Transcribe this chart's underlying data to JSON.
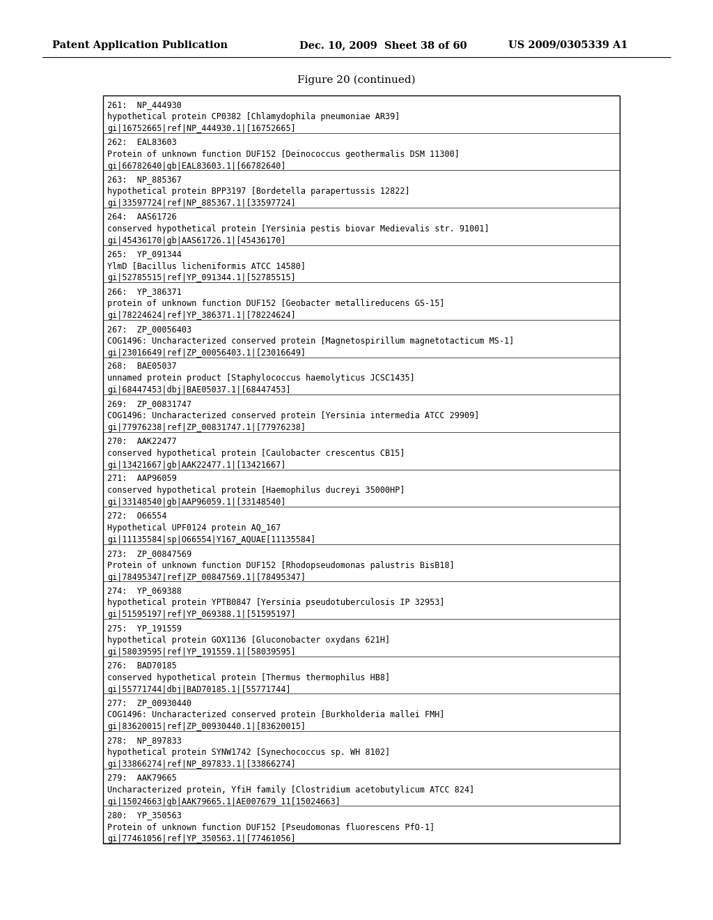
{
  "header_left": "Patent Application Publication",
  "header_mid": "Dec. 10, 2009  Sheet 38 of 60",
  "header_right": "US 2009/0305339 A1",
  "figure_title": "Figure 20 (continued)",
  "entries": [
    {
      "num": "261:  NP_444930",
      "line2": "hypothetical protein CP0382 [Chlamydophila pneumoniae AR39]",
      "line3": "gi|16752665|ref|NP_444930.1|[16752665]"
    },
    {
      "num": "262:  EAL83603",
      "line2": "Protein of unknown function DUF152 [Deinococcus geothermalis DSM 11300]",
      "line3": "gi|66782640|gb|EAL83603.1|[66782640]"
    },
    {
      "num": "263:  NP_885367",
      "line2": "hypothetical protein BPP3197 [Bordetella parapertussis 12822]",
      "line3": "gi|33597724|ref|NP_885367.1|[33597724]"
    },
    {
      "num": "264:  AAS61726",
      "line2": "conserved hypothetical protein [Yersinia pestis biovar Medievalis str. 91001]",
      "line3": "gi|45436170|gb|AAS61726.1|[45436170]"
    },
    {
      "num": "265:  YP_091344",
      "line2": "YlmD [Bacillus licheniformis ATCC 14580]",
      "line3": "gi|52785515|ref|YP_091344.1|[52785515]"
    },
    {
      "num": "266:  YP_386371",
      "line2": "protein of unknown function DUF152 [Geobacter metallireducens GS-15]",
      "line3": "gi|78224624|ref|YP_386371.1|[78224624]"
    },
    {
      "num": "267:  ZP_00056403",
      "line2": "COG1496: Uncharacterized conserved protein [Magnetospirillum magnetotacticum MS-1]",
      "line3": "gi|23016649|ref|ZP_00056403.1|[23016649]"
    },
    {
      "num": "268:  BAE05037",
      "line2": "unnamed protein product [Staphylococcus haemolyticus JCSC1435]",
      "line3": "gi|68447453|dbj|BAE05037.1|[68447453]"
    },
    {
      "num": "269:  ZP_00831747",
      "line2": "COG1496: Uncharacterized conserved protein [Yersinia intermedia ATCC 29909]",
      "line3": "gi|77976238|ref|ZP_00831747.1|[77976238]"
    },
    {
      "num": "270:  AAK22477",
      "line2": "conserved hypothetical protein [Caulobacter crescentus CB15]",
      "line3": "gi|13421667|gb|AAK22477.1|[13421667]"
    },
    {
      "num": "271:  AAP96059",
      "line2": "conserved hypothetical protein [Haemophilus ducreyi 35000HP]",
      "line3": "gi|33148540|gb|AAP96059.1|[33148540]"
    },
    {
      "num": "272:  O66554",
      "line2": "Hypothetical UPF0124 protein AQ_167",
      "line3": "gi|11135584|sp|O66554|Y167_AQUAE[11135584]"
    },
    {
      "num": "273:  ZP_00847569",
      "line2": "Protein of unknown function DUF152 [Rhodopseudomonas palustris BisB18]",
      "line3": "gi|78495347|ref|ZP_00847569.1|[78495347]"
    },
    {
      "num": "274:  YP_069388",
      "line2": "hypothetical protein YPTB0847 [Yersinia pseudotuberculosis IP 32953]",
      "line3": "gi|51595197|ref|YP_069388.1|[51595197]"
    },
    {
      "num": "275:  YP_191559",
      "line2": "hypothetical protein GOX1136 [Gluconobacter oxydans 621H]",
      "line3": "gi|58039595|ref|YP_191559.1|[58039595]"
    },
    {
      "num": "276:  BAD70185",
      "line2": "conserved hypothetical protein [Thermus thermophilus HB8]",
      "line3": "gi|55771744|dbj|BAD70185.1|[55771744]"
    },
    {
      "num": "277:  ZP_00930440",
      "line2": "COG1496: Uncharacterized conserved protein [Burkholderia mallei FMH]",
      "line3": "gi|83620015|ref|ZP_00930440.1|[83620015]"
    },
    {
      "num": "278:  NP_897833",
      "line2": "hypothetical protein SYNW1742 [Synechococcus sp. WH 8102]",
      "line3": "gi|33866274|ref|NP_897833.1|[33866274]"
    },
    {
      "num": "279:  AAK79665",
      "line2": "Uncharacterized protein, YfiH family [Clostridium acetobutylicum ATCC 824]",
      "line3": "gi|15024663|gb|AAK79665.1|AE007679_11[15024663]"
    },
    {
      "num": "280:  YP_350563",
      "line2": "Protein of unknown function DUF152 [Pseudomonas fluorescens PfO-1]",
      "line3": "gi|77461056|ref|YP_350563.1|[77461056]"
    }
  ],
  "bg_color": "#ffffff",
  "text_color": "#000000",
  "border_color": "#000000",
  "header_font_size": 10.5,
  "title_font_size": 11,
  "entry_font_size": 8.5
}
